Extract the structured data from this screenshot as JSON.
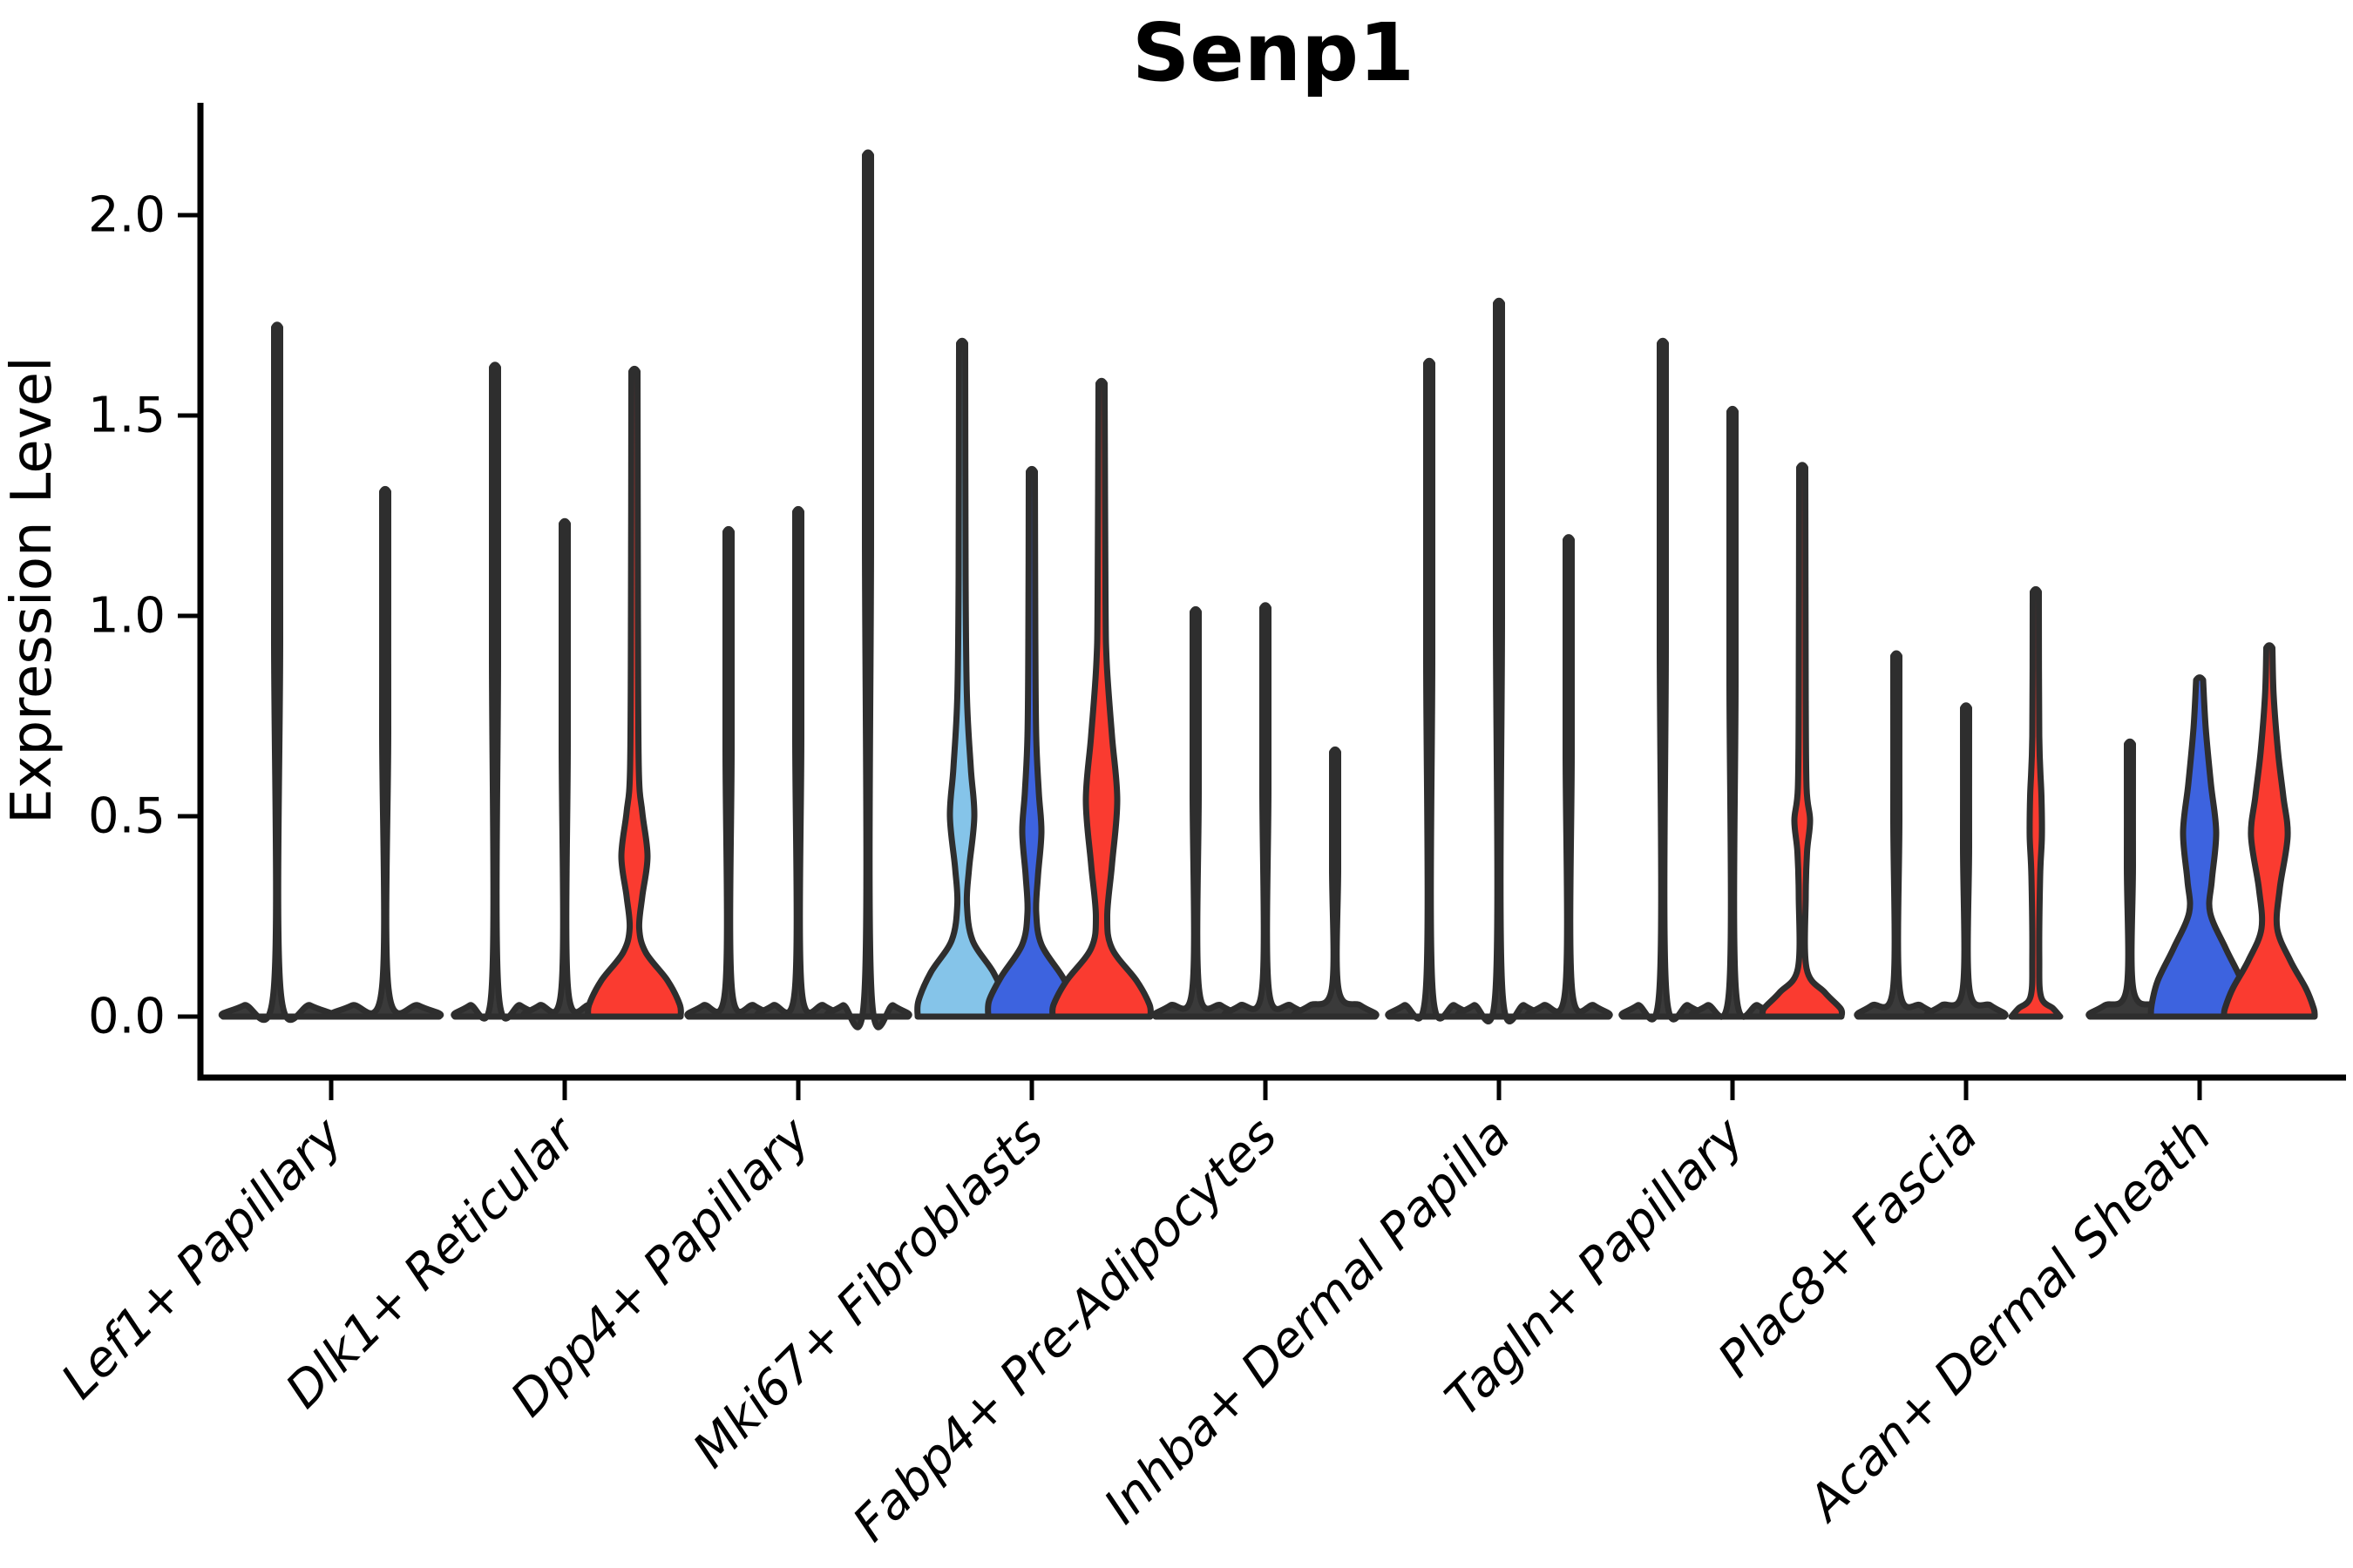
{
  "figure": {
    "background": "#ffffff"
  },
  "chart_data": {
    "type": "violin",
    "title": "Senp1",
    "ylabel": "Expression Level",
    "xlabel": "",
    "yticks": [
      "0.0",
      "0.5",
      "1.0",
      "1.5",
      "2.0"
    ],
    "ylim": [
      0,
      2.28
    ],
    "grid": false,
    "legend": null,
    "palette": {
      "plain": "#3a3a3a",
      "light_blue": "#85C4E9",
      "blue": "#3D63DF",
      "red": "#FA3B30",
      "outline": "#2e2e2e",
      "axis": "#000000"
    },
    "groups": [
      {
        "label": "Lef1+ Papillary",
        "violins": [
          {
            "color": "plain",
            "expression_max": 1.72,
            "profile": [
              [
                1.72,
                3.5
              ],
              [
                0.95,
                3.5
              ],
              [
                0.07,
                3.8
              ],
              [
                0.028,
                38
              ],
              [
                0.008,
                62
              ],
              [
                0,
                62
              ]
            ]
          },
          {
            "color": "plain",
            "expression_max": 1.31,
            "profile": [
              [
                1.31,
                3.5
              ],
              [
                0.72,
                3.5
              ],
              [
                0.07,
                3.8
              ],
              [
                0.028,
                38
              ],
              [
                0.008,
                62
              ],
              [
                0,
                62
              ]
            ]
          }
        ]
      },
      {
        "label": "Dlk1+ Reticular",
        "violins": [
          {
            "color": "plain",
            "expression_max": 1.62,
            "profile": [
              [
                1.62,
                3.5
              ],
              [
                0.9,
                3.5
              ],
              [
                0.07,
                3.8
              ],
              [
                0.028,
                29
              ],
              [
                0.008,
                46
              ],
              [
                0,
                46
              ]
            ]
          },
          {
            "color": "plain",
            "expression_max": 1.23,
            "profile": [
              [
                1.23,
                3.5
              ],
              [
                0.68,
                3.5
              ],
              [
                0.07,
                3.8
              ],
              [
                0.028,
                29
              ],
              [
                0.008,
                46
              ],
              [
                0,
                46
              ]
            ]
          },
          {
            "color": "red",
            "expression_max": 1.61,
            "profile": [
              [
                1.61,
                3.5
              ],
              [
                1.0,
                4
              ],
              [
                0.62,
                5
              ],
              [
                0.51,
                9
              ],
              [
                0.4,
                15
              ],
              [
                0.3,
                9
              ],
              [
                0.22,
                5.5
              ],
              [
                0.16,
                13
              ],
              [
                0.09,
                38
              ],
              [
                0.03,
                52
              ],
              [
                0,
                53
              ]
            ]
          }
        ]
      },
      {
        "label": "Dpp4+ Papillary",
        "violins": [
          {
            "color": "plain",
            "expression_max": 1.21,
            "profile": [
              [
                1.21,
                3.5
              ],
              [
                0.67,
                3.5
              ],
              [
                0.07,
                3.8
              ],
              [
                0.028,
                29
              ],
              [
                0.008,
                46
              ],
              [
                0,
                46
              ]
            ]
          },
          {
            "color": "plain",
            "expression_max": 1.26,
            "profile": [
              [
                1.26,
                3.5
              ],
              [
                0.7,
                3.5
              ],
              [
                0.07,
                3.8
              ],
              [
                0.028,
                29
              ],
              [
                0.008,
                46
              ],
              [
                0,
                46
              ]
            ]
          },
          {
            "color": "plain",
            "expression_max": 2.15,
            "profile": [
              [
                2.15,
                3.5
              ],
              [
                1.2,
                3.5
              ],
              [
                0.07,
                3.8
              ],
              [
                0.028,
                29
              ],
              [
                0.008,
                46
              ],
              [
                0,
                46
              ]
            ]
          }
        ]
      },
      {
        "label": "Mki67+ Fibroblasts",
        "violins": [
          {
            "color": "light_blue",
            "expression_max": 1.68,
            "profile": [
              [
                1.68,
                3.5
              ],
              [
                1.1,
                4
              ],
              [
                0.8,
                5.5
              ],
              [
                0.62,
                10
              ],
              [
                0.5,
                14
              ],
              [
                0.37,
                8
              ],
              [
                0.28,
                5.5
              ],
              [
                0.19,
                12
              ],
              [
                0.11,
                36
              ],
              [
                0.04,
                50
              ],
              [
                0,
                51
              ]
            ]
          },
          {
            "color": "blue",
            "expression_max": 1.36,
            "profile": [
              [
                1.36,
                3.5
              ],
              [
                0.95,
                4
              ],
              [
                0.7,
                5
              ],
              [
                0.56,
                8
              ],
              [
                0.46,
                11
              ],
              [
                0.35,
                7
              ],
              [
                0.26,
                5
              ],
              [
                0.18,
                11
              ],
              [
                0.1,
                35
              ],
              [
                0.04,
                49
              ],
              [
                0,
                50
              ]
            ]
          },
          {
            "color": "red",
            "expression_max": 1.58,
            "profile": [
              [
                1.58,
                3.5
              ],
              [
                1.05,
                4.5
              ],
              [
                0.88,
                6
              ],
              [
                0.7,
                12
              ],
              [
                0.54,
                18
              ],
              [
                0.38,
                12
              ],
              [
                0.25,
                6.5
              ],
              [
                0.17,
                12
              ],
              [
                0.09,
                40
              ],
              [
                0.03,
                55
              ],
              [
                0,
                56
              ]
            ]
          }
        ]
      },
      {
        "label": "Fabp4+ Pre-Adipocytes",
        "violins": [
          {
            "color": "plain",
            "expression_max": 1.01,
            "profile": [
              [
                1.01,
                3.5
              ],
              [
                0.56,
                3.5
              ],
              [
                0.07,
                3.8
              ],
              [
                0.028,
                29
              ],
              [
                0.008,
                46
              ],
              [
                0,
                46
              ]
            ]
          },
          {
            "color": "plain",
            "expression_max": 1.02,
            "profile": [
              [
                1.02,
                3.5
              ],
              [
                0.57,
                3.5
              ],
              [
                0.07,
                3.8
              ],
              [
                0.028,
                29
              ],
              [
                0.008,
                46
              ],
              [
                0,
                46
              ]
            ]
          },
          {
            "color": "plain",
            "expression_max": 0.66,
            "profile": [
              [
                0.66,
                3.5
              ],
              [
                0.37,
                3.5
              ],
              [
                0.07,
                3.8
              ],
              [
                0.028,
                29
              ],
              [
                0.008,
                46
              ],
              [
                0,
                46
              ]
            ]
          }
        ]
      },
      {
        "label": "Inhba+ Dermal Papilla",
        "violins": [
          {
            "color": "plain",
            "expression_max": 1.63,
            "profile": [
              [
                1.63,
                3.5
              ],
              [
                0.9,
                3.5
              ],
              [
                0.07,
                3.8
              ],
              [
                0.028,
                29
              ],
              [
                0.008,
                46
              ],
              [
                0,
                46
              ]
            ]
          },
          {
            "color": "plain",
            "expression_max": 1.78,
            "profile": [
              [
                1.78,
                3.5
              ],
              [
                1.0,
                3.5
              ],
              [
                0.07,
                3.8
              ],
              [
                0.028,
                29
              ],
              [
                0.008,
                46
              ],
              [
                0,
                46
              ]
            ]
          },
          {
            "color": "plain",
            "expression_max": 1.19,
            "profile": [
              [
                1.19,
                3.5
              ],
              [
                0.66,
                3.5
              ],
              [
                0.07,
                3.8
              ],
              [
                0.028,
                29
              ],
              [
                0.008,
                46
              ],
              [
                0,
                46
              ]
            ]
          }
        ]
      },
      {
        "label": "Tagln+ Papillary",
        "violins": [
          {
            "color": "plain",
            "expression_max": 1.68,
            "profile": [
              [
                1.68,
                3.5
              ],
              [
                0.93,
                3.5
              ],
              [
                0.07,
                3.8
              ],
              [
                0.028,
                29
              ],
              [
                0.008,
                46
              ],
              [
                0,
                46
              ]
            ]
          },
          {
            "color": "plain",
            "expression_max": 1.51,
            "profile": [
              [
                1.51,
                3.5
              ],
              [
                0.84,
                3.5
              ],
              [
                0.07,
                3.8
              ],
              [
                0.028,
                29
              ],
              [
                0.008,
                46
              ],
              [
                0,
                46
              ]
            ]
          },
          {
            "color": "red",
            "expression_max": 1.37,
            "profile": [
              [
                1.37,
                3.5
              ],
              [
                0.8,
                4
              ],
              [
                0.57,
                5
              ],
              [
                0.49,
                9
              ],
              [
                0.41,
                5.5
              ],
              [
                0.3,
                4
              ],
              [
                0.12,
                5
              ],
              [
                0.06,
                26
              ],
              [
                0.02,
                44
              ],
              [
                0,
                45
              ]
            ]
          }
        ]
      },
      {
        "label": "Plac8+ Fascia",
        "violins": [
          {
            "color": "plain",
            "expression_max": 0.9,
            "profile": [
              [
                0.9,
                3.5
              ],
              [
                0.5,
                3.5
              ],
              [
                0.07,
                3.8
              ],
              [
                0.028,
                28
              ],
              [
                0.008,
                44
              ],
              [
                0,
                44
              ]
            ]
          },
          {
            "color": "plain",
            "expression_max": 0.77,
            "profile": [
              [
                0.77,
                3.5
              ],
              [
                0.43,
                3.5
              ],
              [
                0.07,
                3.8
              ],
              [
                0.028,
                28
              ],
              [
                0.008,
                44
              ],
              [
                0,
                44
              ]
            ]
          },
          {
            "color": "red",
            "expression_max": 1.06,
            "profile": [
              [
                1.06,
                3.5
              ],
              [
                0.7,
                4
              ],
              [
                0.55,
                6.5
              ],
              [
                0.45,
                7
              ],
              [
                0.35,
                5
              ],
              [
                0.15,
                4
              ],
              [
                0.05,
                6
              ],
              [
                0.02,
                20
              ],
              [
                0,
                28
              ]
            ]
          }
        ]
      },
      {
        "label": "Acan+ Dermal Sheath",
        "violins": [
          {
            "color": "plain",
            "expression_max": 0.68,
            "profile": [
              [
                0.68,
                3.5
              ],
              [
                0.38,
                3.5
              ],
              [
                0.07,
                3.8
              ],
              [
                0.028,
                29
              ],
              [
                0.008,
                46
              ],
              [
                0,
                46
              ]
            ]
          },
          {
            "color": "blue",
            "expression_max": 0.84,
            "profile": [
              [
                0.84,
                4
              ],
              [
                0.72,
                7
              ],
              [
                0.58,
                13
              ],
              [
                0.46,
                19
              ],
              [
                0.34,
                14
              ],
              [
                0.26,
                12
              ],
              [
                0.17,
                30
              ],
              [
                0.09,
                48
              ],
              [
                0.03,
                55
              ],
              [
                0,
                56
              ]
            ]
          },
          {
            "color": "red",
            "expression_max": 0.92,
            "profile": [
              [
                0.92,
                3.5
              ],
              [
                0.8,
                5
              ],
              [
                0.66,
                10
              ],
              [
                0.55,
                16
              ],
              [
                0.45,
                21
              ],
              [
                0.32,
                12
              ],
              [
                0.22,
                9
              ],
              [
                0.14,
                24
              ],
              [
                0.07,
                42
              ],
              [
                0.02,
                51
              ],
              [
                0,
                52
              ]
            ]
          }
        ]
      }
    ]
  }
}
